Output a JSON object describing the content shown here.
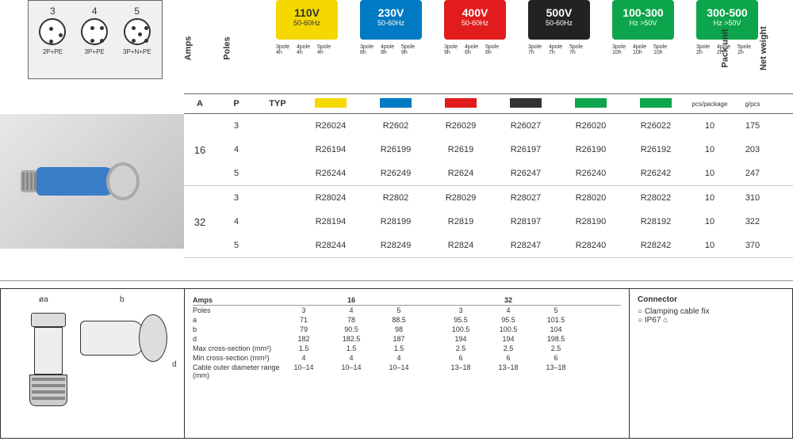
{
  "pins": [
    {
      "num": "3",
      "label": "2P+PE",
      "dots": [
        [
          11,
          9
        ],
        [
          23,
          17
        ],
        [
          11,
          25
        ]
      ]
    },
    {
      "num": "4",
      "label": "3P+PE",
      "dots": [
        [
          10,
          8
        ],
        [
          22,
          8
        ],
        [
          10,
          24
        ],
        [
          22,
          24
        ]
      ]
    },
    {
      "num": "5",
      "label": "3P+N+PE",
      "dots": [
        [
          8,
          8
        ],
        [
          24,
          8
        ],
        [
          16,
          16
        ],
        [
          8,
          24
        ],
        [
          24,
          24
        ]
      ]
    }
  ],
  "vert_labels": {
    "amps": "Amps",
    "poles": "Poles",
    "pack": "Pack unit",
    "weight": "Net weight"
  },
  "volt_boxes": [
    {
      "main": "110V",
      "sub": "50-60Hz",
      "cls": "vb-yellow",
      "swatch": "#f5d800",
      "subs": [
        "3pole 4h",
        "4pole 4h",
        "5pole 4h"
      ]
    },
    {
      "main": "230V",
      "sub": "50-60Hz",
      "cls": "vb-blue",
      "swatch": "#007ac2",
      "subs": [
        "3pole 6h",
        "4pole 9h",
        "5pole 9h"
      ]
    },
    {
      "main": "400V",
      "sub": "50-60Hz",
      "cls": "vb-red",
      "swatch": "#e21c1c",
      "subs": [
        "3pole 9h",
        "4pole 6h",
        "5pole 6h"
      ]
    },
    {
      "main": "500V",
      "sub": "50-60Hz",
      "cls": "vb-black",
      "swatch": "#333333",
      "subs": [
        "3pole 7h",
        "4pole 7h",
        "5pole 7h"
      ]
    },
    {
      "main": "100-300",
      "sub": "Hz >50V",
      "cls": "vb-green1",
      "swatch": "#0da54b",
      "subs": [
        "3pole 10h",
        "4pole 10h",
        "5pole 10h"
      ]
    },
    {
      "main": "300-500",
      "sub": "Hz >50V",
      "cls": "vb-green2",
      "swatch": "#0da54b",
      "subs": [
        "3pole 2h",
        "4pole 2h",
        "5pole 2h"
      ]
    }
  ],
  "hdr2": {
    "A": "A",
    "P": "P",
    "TYP": "TYP",
    "pack": "pcs/package",
    "wt": "g/pcs"
  },
  "groups": [
    {
      "amp": "16",
      "rows": [
        {
          "pole": "3",
          "codes": [
            "R26024",
            "R2602",
            "R26029",
            "R26027",
            "R26020",
            "R26022"
          ],
          "pack": "10",
          "wt": "175"
        },
        {
          "pole": "4",
          "codes": [
            "R26194",
            "R26199",
            "R2619",
            "R26197",
            "R26190",
            "R26192"
          ],
          "pack": "10",
          "wt": "203"
        },
        {
          "pole": "5",
          "codes": [
            "R26244",
            "R26249",
            "R2624",
            "R26247",
            "R26240",
            "R26242"
          ],
          "pack": "10",
          "wt": "247"
        }
      ]
    },
    {
      "amp": "32",
      "rows": [
        {
          "pole": "3",
          "codes": [
            "R28024",
            "R2802",
            "R28029",
            "R28027",
            "R28020",
            "R28022"
          ],
          "pack": "10",
          "wt": "310"
        },
        {
          "pole": "4",
          "codes": [
            "R28194",
            "R28199",
            "R2819",
            "R28197",
            "R28190",
            "R28192"
          ],
          "pack": "10",
          "wt": "322"
        },
        {
          "pole": "5",
          "codes": [
            "R28244",
            "R28249",
            "R2824",
            "R28247",
            "R28240",
            "R28242"
          ],
          "pack": "10",
          "wt": "370"
        }
      ]
    }
  ],
  "dims": {
    "oa": "øa",
    "b": "b",
    "d": "d",
    "amps_hdr": "Amps",
    "groups": [
      "16",
      "32"
    ],
    "rows": [
      {
        "lbl": "Poles",
        "v": [
          "3",
          "4",
          "5",
          "3",
          "4",
          "5"
        ]
      },
      {
        "lbl": "a",
        "v": [
          "71",
          "78",
          "88.5",
          "95.5",
          "95.5",
          "101.5"
        ]
      },
      {
        "lbl": "b",
        "v": [
          "79",
          "90.5",
          "98",
          "100.5",
          "100.5",
          "104"
        ]
      },
      {
        "lbl": "d",
        "v": [
          "182",
          "182.5",
          "187",
          "194",
          "194",
          "198.5"
        ]
      },
      {
        "lbl": "Max cross-section (mm²)",
        "v": [
          "1.5",
          "1.5",
          "1.5",
          "2.5",
          "2.5",
          "2.5"
        ]
      },
      {
        "lbl": "Min cross-section (mm²)",
        "v": [
          "4",
          "4",
          "4",
          "6",
          "6",
          "6"
        ]
      },
      {
        "lbl": "Cable outer diameter range (mm)",
        "v": [
          "10–14",
          "10–14",
          "10–14",
          "13–18",
          "13–18",
          "13–18"
        ]
      }
    ]
  },
  "notes": {
    "title": "Connector",
    "items": [
      "Clamping cable fix",
      "IP67 ⌂"
    ]
  }
}
